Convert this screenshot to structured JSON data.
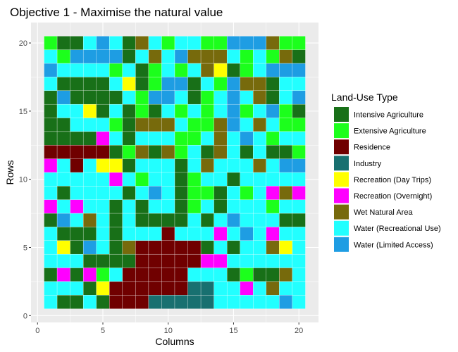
{
  "chart_data": {
    "type": "heatmap",
    "title": "Objective 1 - Maximise the natural value",
    "xlabel": "Columns",
    "ylabel": "Rows",
    "x_ticks": [
      0,
      5,
      10,
      15,
      20
    ],
    "y_ticks": [
      0,
      5,
      10,
      15,
      20
    ],
    "xlim": [
      -0.5,
      21.5
    ],
    "ylim": [
      -0.5,
      21.5
    ],
    "grid": true,
    "legend": {
      "title": "Land-Use Type",
      "placement": "right",
      "items": [
        {
          "label": "Intensive Agriculture",
          "color": "#187018"
        },
        {
          "label": "Extensive Agriculture",
          "color": "#1cff1c"
        },
        {
          "label": "Residence",
          "color": "#700000"
        },
        {
          "label": "Industry",
          "color": "#187070"
        },
        {
          "label": "Recreation (Day Trips)",
          "color": "#ffff00"
        },
        {
          "label": "Recreation (Overnight)",
          "color": "#ff00ff"
        },
        {
          "label": "Wet Natural Area",
          "color": "#776a0c"
        },
        {
          "label": "Water (Recreational Use)",
          "color": "#22ffff"
        },
        {
          "label": "Water (Limited Access)",
          "color": "#1e9de3"
        }
      ]
    },
    "x": [
      1,
      2,
      3,
      4,
      5,
      6,
      7,
      8,
      9,
      10,
      11,
      12,
      13,
      14,
      15,
      16,
      17,
      18,
      19,
      20
    ],
    "y": [
      20,
      19,
      18,
      17,
      16,
      15,
      14,
      13,
      12,
      11,
      10,
      9,
      8,
      7,
      6,
      5,
      4,
      3,
      2,
      1
    ],
    "values": [
      [
        "Extensive Agriculture",
        "Intensive Agriculture",
        "Intensive Agriculture",
        "Water (Recreational Use)",
        "Water (Limited Access)",
        "Water (Recreational Use)",
        "Intensive Agriculture",
        "Wet Natural Area",
        "Water (Recreational Use)",
        "Extensive Agriculture",
        "Water (Recreational Use)",
        "Water (Recreational Use)",
        "Extensive Agriculture",
        "Extensive Agriculture",
        "Water (Limited Access)",
        "Water (Limited Access)",
        "Water (Limited Access)",
        "Wet Natural Area",
        "Extensive Agriculture",
        "Extensive Agriculture"
      ],
      [
        "Water (Recreational Use)",
        "Extensive Agriculture",
        "Water (Limited Access)",
        "Water (Limited Access)",
        "Water (Limited Access)",
        "Water (Limited Access)",
        "Intensive Agriculture",
        "Water (Recreational Use)",
        "Wet Natural Area",
        "Water (Recreational Use)",
        "Water (Limited Access)",
        "Wet Natural Area",
        "Wet Natural Area",
        "Wet Natural Area",
        "Water (Recreational Use)",
        "Extensive Agriculture",
        "Water (Recreational Use)",
        "Extensive Agriculture",
        "Wet Natural Area",
        "Intensive Agriculture"
      ],
      [
        "Water (Limited Access)",
        "Water (Recreational Use)",
        "Water (Recreational Use)",
        "Water (Recreational Use)",
        "Water (Recreational Use)",
        "Extensive Agriculture",
        "Water (Recreational Use)",
        "Intensive Agriculture",
        "Extensive Agriculture",
        "Water (Recreational Use)",
        "Extensive Agriculture",
        "Water (Recreational Use)",
        "Wet Natural Area",
        "Recreation (Day Trips)",
        "Intensive Agriculture",
        "Extensive Agriculture",
        "Water (Recreational Use)",
        "Water (Limited Access)",
        "Water (Limited Access)",
        "Water (Limited Access)"
      ],
      [
        "Water (Recreational Use)",
        "Intensive Agriculture",
        "Intensive Agriculture",
        "Intensive Agriculture",
        "Intensive Agriculture",
        "Water (Recreational Use)",
        "Recreation (Day Trips)",
        "Intensive Agriculture",
        "Extensive Agriculture",
        "Water (Limited Access)",
        "Water (Limited Access)",
        "Intensive Agriculture",
        "Water (Recreational Use)",
        "Extensive Agriculture",
        "Water (Limited Access)",
        "Wet Natural Area",
        "Wet Natural Area",
        "Intensive Agriculture",
        "Water (Recreational Use)",
        "Water (Recreational Use)"
      ],
      [
        "Intensive Agriculture",
        "Water (Limited Access)",
        "Intensive Agriculture",
        "Intensive Agriculture",
        "Intensive Agriculture",
        "Intensive Agriculture",
        "Water (Recreational Use)",
        "Extensive Agriculture",
        "Water (Limited Access)",
        "Water (Limited Access)",
        "Water (Recreational Use)",
        "Intensive Agriculture",
        "Extensive Agriculture",
        "Water (Recreational Use)",
        "Water (Limited Access)",
        "Water (Recreational Use)",
        "Wet Natural Area",
        "Intensive Agriculture",
        "Water (Recreational Use)",
        "Water (Limited Access)"
      ],
      [
        "Intensive Agriculture",
        "Water (Recreational Use)",
        "Water (Recreational Use)",
        "Recreation (Day Trips)",
        "Intensive Agriculture",
        "Water (Recreational Use)",
        "Intensive Agriculture",
        "Extensive Agriculture",
        "Intensive Agriculture",
        "Water (Recreational Use)",
        "Extensive Agriculture",
        "Water (Recreational Use)",
        "Extensive Agriculture",
        "Water (Recreational Use)",
        "Water (Limited Access)",
        "Extensive Agriculture",
        "Water (Recreational Use)",
        "Water (Limited Access)",
        "Extensive Agriculture",
        "Intensive Agriculture"
      ],
      [
        "Intensive Agriculture",
        "Intensive Agriculture",
        "Water (Recreational Use)",
        "Water (Recreational Use)",
        "Water (Recreational Use)",
        "Extensive Agriculture",
        "Intensive Agriculture",
        "Wet Natural Area",
        "Wet Natural Area",
        "Wet Natural Area",
        "Water (Recreational Use)",
        "Extensive Agriculture",
        "Extensive Agriculture",
        "Wet Natural Area",
        "Water (Limited Access)",
        "Water (Recreational Use)",
        "Wet Natural Area",
        "Water (Recreational Use)",
        "Extensive Agriculture",
        "Extensive Agriculture"
      ],
      [
        "Intensive Agriculture",
        "Intensive Agriculture",
        "Intensive Agriculture",
        "Intensive Agriculture",
        "Recreation (Overnight)",
        "Water (Recreational Use)",
        "Intensive Agriculture",
        "Water (Recreational Use)",
        "Water (Recreational Use)",
        "Water (Recreational Use)",
        "Extensive Agriculture",
        "Extensive Agriculture",
        "Water (Recreational Use)",
        "Wet Natural Area",
        "Water (Recreational Use)",
        "Water (Limited Access)",
        "Water (Recreational Use)",
        "Extensive Agriculture",
        "Water (Recreational Use)",
        "Water (Recreational Use)"
      ],
      [
        "Residence",
        "Residence",
        "Residence",
        "Residence",
        "Residence",
        "Intensive Agriculture",
        "Extensive Agriculture",
        "Wet Natural Area",
        "Intensive Agriculture",
        "Wet Natural Area",
        "Extensive Agriculture",
        "Water (Recreational Use)",
        "Intensive Agriculture",
        "Wet Natural Area",
        "Water (Recreational Use)",
        "Intensive Agriculture",
        "Water (Recreational Use)",
        "Intensive Agriculture",
        "Intensive Agriculture",
        "Extensive Agriculture"
      ],
      [
        "Recreation (Overnight)",
        "Water (Recreational Use)",
        "Residence",
        "Water (Recreational Use)",
        "Recreation (Day Trips)",
        "Recreation (Day Trips)",
        "Intensive Agriculture",
        "Water (Recreational Use)",
        "Water (Recreational Use)",
        "Water (Recreational Use)",
        "Intensive Agriculture",
        "Water (Recreational Use)",
        "Wet Natural Area",
        "Water (Recreational Use)",
        "Water (Recreational Use)",
        "Water (Recreational Use)",
        "Wet Natural Area",
        "Water (Recreational Use)",
        "Water (Limited Access)",
        "Water (Limited Access)"
      ],
      [
        "Water (Recreational Use)",
        "Water (Recreational Use)",
        "Water (Recreational Use)",
        "Water (Recreational Use)",
        "Water (Recreational Use)",
        "Recreation (Overnight)",
        "Water (Recreational Use)",
        "Extensive Agriculture",
        "Water (Recreational Use)",
        "Water (Recreational Use)",
        "Intensive Agriculture",
        "Extensive Agriculture",
        "Water (Recreational Use)",
        "Water (Recreational Use)",
        "Intensive Agriculture",
        "Water (Recreational Use)",
        "Water (Recreational Use)",
        "Water (Recreational Use)",
        "Water (Recreational Use)",
        "Water (Recreational Use)"
      ],
      [
        "Water (Recreational Use)",
        "Intensive Agriculture",
        "Water (Recreational Use)",
        "Water (Recreational Use)",
        "Water (Recreational Use)",
        "Water (Recreational Use)",
        "Intensive Agriculture",
        "Water (Recreational Use)",
        "Water (Limited Access)",
        "Water (Recreational Use)",
        "Intensive Agriculture",
        "Extensive Agriculture",
        "Extensive Agriculture",
        "Intensive Agriculture",
        "Water (Recreational Use)",
        "Extensive Agriculture",
        "Water (Recreational Use)",
        "Recreation (Overnight)",
        "Wet Natural Area",
        "Recreation (Overnight)"
      ],
      [
        "Recreation (Overnight)",
        "Water (Recreational Use)",
        "Recreation (Overnight)",
        "Water (Recreational Use)",
        "Water (Recreational Use)",
        "Intensive Agriculture",
        "Water (Recreational Use)",
        "Intensive Agriculture",
        "Water (Recreational Use)",
        "Water (Recreational Use)",
        "Intensive Agriculture",
        "Extensive Agriculture",
        "Water (Recreational Use)",
        "Intensive Agriculture",
        "Water (Recreational Use)",
        "Water (Recreational Use)",
        "Water (Recreational Use)",
        "Extensive Agriculture",
        "Water (Recreational Use)",
        "Water (Recreational Use)"
      ],
      [
        "Intensive Agriculture",
        "Water (Limited Access)",
        "Water (Recreational Use)",
        "Wet Natural Area",
        "Water (Recreational Use)",
        "Intensive Agriculture",
        "Water (Recreational Use)",
        "Intensive Agriculture",
        "Intensive Agriculture",
        "Intensive Agriculture",
        "Intensive Agriculture",
        "Water (Recreational Use)",
        "Intensive Agriculture",
        "Water (Recreational Use)",
        "Water (Limited Access)",
        "Water (Recreational Use)",
        "Water (Recreational Use)",
        "Water (Recreational Use)",
        "Intensive Agriculture",
        "Intensive Agriculture"
      ],
      [
        "Water (Recreational Use)",
        "Intensive Agriculture",
        "Intensive Agriculture",
        "Intensive Agriculture",
        "Water (Recreational Use)",
        "Intensive Agriculture",
        "Water (Recreational Use)",
        "Water (Recreational Use)",
        "Water (Recreational Use)",
        "Residence",
        "Water (Recreational Use)",
        "Water (Recreational Use)",
        "Water (Recreational Use)",
        "Recreation (Overnight)",
        "Water (Recreational Use)",
        "Water (Limited Access)",
        "Water (Recreational Use)",
        "Recreation (Overnight)",
        "Water (Recreational Use)",
        "Water (Recreational Use)"
      ],
      [
        "Water (Recreational Use)",
        "Recreation (Day Trips)",
        "Intensive Agriculture",
        "Water (Limited Access)",
        "Water (Recreational Use)",
        "Intensive Agriculture",
        "Wet Natural Area",
        "Residence",
        "Residence",
        "Residence",
        "Residence",
        "Residence",
        "Intensive Agriculture",
        "Water (Recreational Use)",
        "Intensive Agriculture",
        "Water (Recreational Use)",
        "Water (Recreational Use)",
        "Wet Natural Area",
        "Recreation (Day Trips)",
        "Water (Recreational Use)"
      ],
      [
        "Water (Recreational Use)",
        "Water (Recreational Use)",
        "Water (Recreational Use)",
        "Intensive Agriculture",
        "Intensive Agriculture",
        "Intensive Agriculture",
        "Intensive Agriculture",
        "Residence",
        "Residence",
        "Residence",
        "Residence",
        "Residence",
        "Recreation (Overnight)",
        "Recreation (Overnight)",
        "Water (Recreational Use)",
        "Water (Recreational Use)",
        "Water (Recreational Use)",
        "Water (Recreational Use)",
        "Water (Recreational Use)",
        "Water (Recreational Use)"
      ],
      [
        "Intensive Agriculture",
        "Recreation (Overnight)",
        "Intensive Agriculture",
        "Recreation (Overnight)",
        "Extensive Agriculture",
        "Water (Recreational Use)",
        "Residence",
        "Residence",
        "Residence",
        "Residence",
        "Residence",
        "Water (Recreational Use)",
        "Water (Recreational Use)",
        "Water (Recreational Use)",
        "Intensive Agriculture",
        "Extensive Agriculture",
        "Intensive Agriculture",
        "Intensive Agriculture",
        "Wet Natural Area",
        "Water (Recreational Use)"
      ],
      [
        "Water (Recreational Use)",
        "Water (Recreational Use)",
        "Water (Recreational Use)",
        "Intensive Agriculture",
        "Recreation (Day Trips)",
        "Residence",
        "Residence",
        "Residence",
        "Residence",
        "Residence",
        "Residence",
        "Industry",
        "Industry",
        "Water (Recreational Use)",
        "Water (Recreational Use)",
        "Recreation (Overnight)",
        "Water (Recreational Use)",
        "Wet Natural Area",
        "Water (Recreational Use)",
        "Water (Recreational Use)"
      ],
      [
        "Water (Recreational Use)",
        "Intensive Agriculture",
        "Intensive Agriculture",
        "Water (Recreational Use)",
        "Intensive Agriculture",
        "Residence",
        "Residence",
        "Residence",
        "Industry",
        "Industry",
        "Industry",
        "Industry",
        "Industry",
        "Water (Recreational Use)",
        "Water (Recreational Use)",
        "Water (Recreational Use)",
        "Water (Recreational Use)",
        "Water (Recreational Use)",
        "Water (Limited Access)",
        "Water (Recreational Use)"
      ]
    ]
  }
}
